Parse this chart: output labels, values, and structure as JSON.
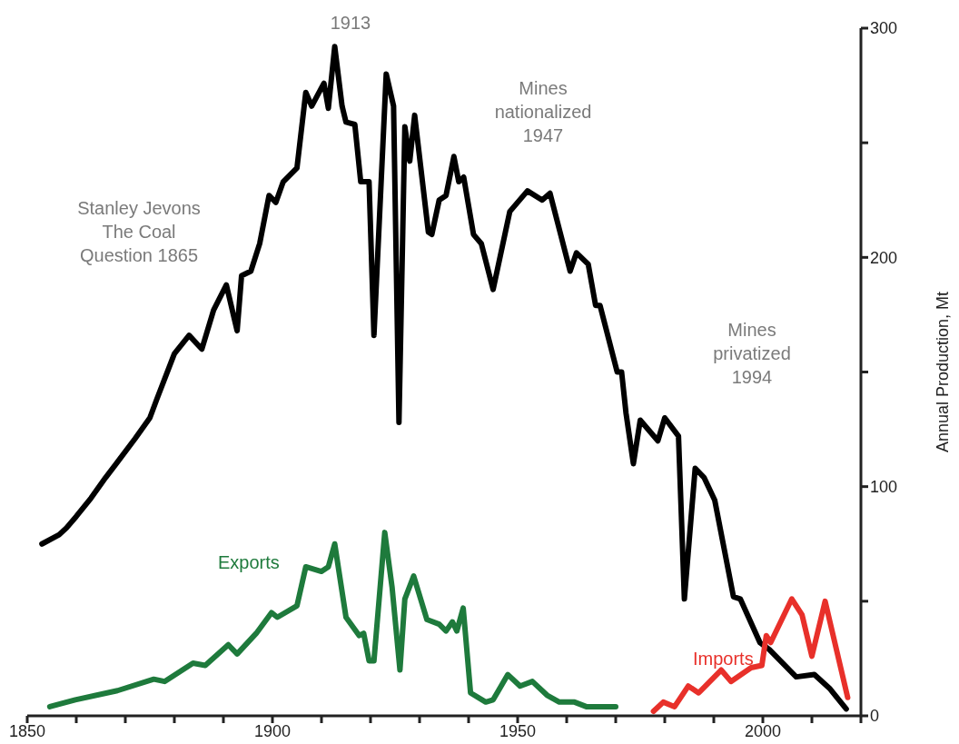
{
  "chart_data": {
    "type": "line",
    "ylabel": "Annual Production, Mt",
    "legend": false,
    "grid": false,
    "xlim": [
      1850,
      2020
    ],
    "xticks": [
      1850,
      {
        "value": 1860,
        "label": null
      },
      {
        "value": 1870,
        "label": null
      },
      {
        "value": 1880,
        "label": null
      },
      {
        "value": 1890,
        "label": null
      },
      1900,
      {
        "value": 1910,
        "label": null
      },
      {
        "value": 1920,
        "label": null
      },
      {
        "value": 1930,
        "label": null
      },
      {
        "value": 1940,
        "label": null
      },
      1950,
      {
        "value": 1960,
        "label": null
      },
      {
        "value": 1970,
        "label": null
      },
      {
        "value": 1980,
        "label": null
      },
      {
        "value": 1990,
        "label": null
      },
      2000,
      {
        "value": 2010,
        "label": null
      },
      {
        "value": 2020,
        "label": null
      }
    ],
    "ylim": [
      0,
      300
    ],
    "yticks": [
      0,
      {
        "value": 50,
        "label": null
      },
      100,
      {
        "value": 150,
        "label": null
      },
      200,
      {
        "value": 250,
        "label": null
      },
      300
    ],
    "series": [
      {
        "color": "#000000",
        "x": [
          1853,
          1856.5,
          1858,
          1860,
          1863,
          1866,
          1868.5,
          1872,
          1875,
          1876.4,
          1880,
          1883,
          1885.6,
          1888,
          1890.6,
          1892.8,
          1893.7,
          1895.6,
          1897.4,
          1899.3,
          1900.7,
          1902.2,
          1905,
          1906.8,
          1908,
          1910.5,
          1911.4,
          1912.7,
          1914.2,
          1915,
          1916.8,
          1918,
          1919.7,
          1920.7,
          1923.2,
          1924.7,
          1925.8,
          1927,
          1928,
          1929,
          1931.8,
          1932.5,
          1934,
          1935.4,
          1937,
          1938,
          1939,
          1941,
          1942.6,
          1945,
          1948.4,
          1952,
          1955,
          1956.6,
          1960.7,
          1962,
          1964.4,
          1965.9,
          1966.8,
          1970.3,
          1971.2,
          1972.1,
          1973.6,
          1975,
          1978.6,
          1980,
          1982.8,
          1984,
          1986.2,
          1988,
          1990.2,
          1994,
          1995.4,
          1999.4,
          2001.3,
          2006.8,
          2010.5,
          2013.6,
          2017
        ],
        "values": [
          75,
          79,
          82,
          87,
          95,
          104,
          111,
          121,
          130,
          138,
          158,
          166,
          160,
          177,
          188,
          168,
          192,
          194,
          206,
          227,
          224,
          233,
          239,
          272,
          266,
          276,
          265,
          292,
          266,
          259,
          258,
          233,
          233,
          166,
          280,
          266,
          128,
          257,
          242,
          262,
          211,
          210,
          225,
          227,
          244,
          233,
          235,
          210,
          206,
          186,
          220,
          229,
          225,
          228,
          194,
          202,
          197,
          179,
          179,
          150,
          150,
          132,
          110,
          129,
          120,
          130,
          122,
          51,
          108,
          104,
          94,
          52,
          51,
          32,
          29,
          17,
          18,
          12,
          3
        ]
      },
      {
        "name": "Exports",
        "color": "#1e7a3c",
        "x": [
          1854.6,
          1859.8,
          1868.4,
          1875.8,
          1878,
          1883.8,
          1886.3,
          1891,
          1892.8,
          1896.7,
          1899.8,
          1901,
          1905,
          1906.8,
          1910,
          1911.4,
          1912.7,
          1915,
          1917.7,
          1918.6,
          1919.7,
          1920.7,
          1922.9,
          1924.4,
          1926,
          1927,
          1928.8,
          1931.5,
          1934,
          1935.4,
          1936.7,
          1937.6,
          1938.9,
          1940.4,
          1943.5,
          1945,
          1948,
          1950.5,
          1953,
          1956,
          1958.5,
          1961.6,
          1964,
          1967,
          1970
        ],
        "values": [
          4,
          7,
          11,
          16,
          15,
          23,
          22,
          31,
          27,
          36,
          45,
          43,
          48,
          65,
          63,
          65,
          75,
          43,
          35,
          36,
          24,
          24,
          80,
          56,
          20,
          51,
          61,
          42,
          40,
          37,
          41,
          37,
          47,
          10,
          6,
          7,
          18,
          13,
          15,
          9,
          6,
          6,
          4,
          4,
          4
        ]
      },
      {
        "name": "Imports",
        "color": "#e8302a",
        "x": [
          1977.7,
          1979.7,
          1982,
          1984.8,
          1986.9,
          1991.5,
          1993.5,
          1997.6,
          1999.8,
          2000.7,
          2001.6,
          2005.9,
          2008,
          2010,
          2012.7,
          2017.3
        ],
        "values": [
          2,
          6,
          4,
          13,
          10,
          20,
          15,
          21,
          22,
          35,
          32,
          51,
          44,
          26,
          50,
          8
        ]
      }
    ],
    "annotations": [
      "1913",
      "Stanley Jevons\nThe Coal\nQuestion 1865",
      "Mines\nnationalized\n1947",
      "Mines\nprivatized\n1994"
    ]
  }
}
